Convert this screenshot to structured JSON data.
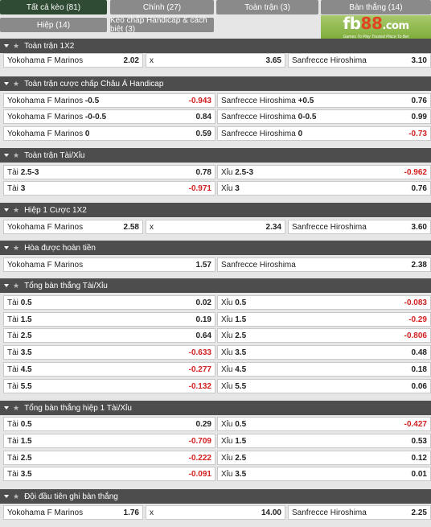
{
  "tabs": [
    {
      "label": "Tất cả kèo (81)",
      "active": true
    },
    {
      "label": "Chính (27)"
    },
    {
      "label": "Toàn trận (3)"
    },
    {
      "label": "Bàn thắng (14)"
    },
    {
      "label": "Hiệp (14)"
    },
    {
      "label": "Kèo chấp Handicap & cách biệt (3)"
    }
  ],
  "logo": {
    "fb": "fb",
    "n88": "88",
    "com": ".com",
    "tagline": "Games To Play  Trusted Place To Bet"
  },
  "sections": [
    {
      "title": "Toàn trận 1X2",
      "rows": [
        [
          {
            "label": "Yokohama F Marinos",
            "odd": "2.02"
          },
          {
            "label": "x",
            "odd": "3.65"
          },
          {
            "label": "Sanfrecce Hiroshima",
            "odd": "3.10"
          }
        ]
      ]
    },
    {
      "title": "Toàn trận cược chấp Châu Á Handicap",
      "rows": [
        [
          {
            "label": "Yokohama F Marinos",
            "line": "-0.5",
            "odd": "-0.943"
          },
          {
            "label": "Sanfrecce Hiroshima",
            "line": "+0.5",
            "odd": "0.76"
          }
        ],
        [
          {
            "label": "Yokohama F Marinos",
            "line": "-0-0.5",
            "odd": "0.84"
          },
          {
            "label": "Sanfrecce Hiroshima",
            "line": "0-0.5",
            "odd": "0.99"
          }
        ],
        [
          {
            "label": "Yokohama F Marinos",
            "line": "0",
            "odd": "0.59"
          },
          {
            "label": "Sanfrecce Hiroshima",
            "line": "0",
            "odd": "-0.73"
          }
        ]
      ]
    },
    {
      "title": "Toàn trận Tài/Xỉu",
      "rows": [
        [
          {
            "label": "Tài",
            "line": "2.5-3",
            "odd": "0.78"
          },
          {
            "label": "Xỉu",
            "line": "2.5-3",
            "odd": "-0.962"
          }
        ],
        [
          {
            "label": "Tài",
            "line": "3",
            "odd": "-0.971"
          },
          {
            "label": "Xỉu",
            "line": "3",
            "odd": "0.76"
          }
        ]
      ]
    },
    {
      "title": "Hiệp 1 Cược 1X2",
      "rows": [
        [
          {
            "label": "Yokohama F Marinos",
            "odd": "2.58"
          },
          {
            "label": "x",
            "odd": "2.34"
          },
          {
            "label": "Sanfrecce Hiroshima",
            "odd": "3.60"
          }
        ]
      ]
    },
    {
      "title": "Hòa được hoàn tiền",
      "rows": [
        [
          {
            "label": "Yokohama F Marinos",
            "odd": "1.57"
          },
          {
            "label": "Sanfrecce Hiroshima",
            "odd": "2.38"
          }
        ]
      ]
    },
    {
      "title": "Tổng bàn thắng Tài/Xỉu",
      "rows": [
        [
          {
            "label": "Tài",
            "line": "0.5",
            "odd": "0.02"
          },
          {
            "label": "Xỉu",
            "line": "0.5",
            "odd": "-0.083"
          }
        ],
        [
          {
            "label": "Tài",
            "line": "1.5",
            "odd": "0.19"
          },
          {
            "label": "Xỉu",
            "line": "1.5",
            "odd": "-0.29"
          }
        ],
        [
          {
            "label": "Tài",
            "line": "2.5",
            "odd": "0.64"
          },
          {
            "label": "Xỉu",
            "line": "2.5",
            "odd": "-0.806"
          }
        ],
        [
          {
            "label": "Tài",
            "line": "3.5",
            "odd": "-0.633"
          },
          {
            "label": "Xỉu",
            "line": "3.5",
            "odd": "0.48"
          }
        ],
        [
          {
            "label": "Tài",
            "line": "4.5",
            "odd": "-0.277"
          },
          {
            "label": "Xỉu",
            "line": "4.5",
            "odd": "0.18"
          }
        ],
        [
          {
            "label": "Tài",
            "line": "5.5",
            "odd": "-0.132"
          },
          {
            "label": "Xỉu",
            "line": "5.5",
            "odd": "0.06"
          }
        ]
      ]
    },
    {
      "title": "Tổng bàn thắng hiệp 1 Tài/Xỉu",
      "rows": [
        [
          {
            "label": "Tài",
            "line": "0.5",
            "odd": "0.29"
          },
          {
            "label": "Xỉu",
            "line": "0.5",
            "odd": "-0.427"
          }
        ],
        [
          {
            "label": "Tài",
            "line": "1.5",
            "odd": "-0.709"
          },
          {
            "label": "Xỉu",
            "line": "1.5",
            "odd": "0.53"
          }
        ],
        [
          {
            "label": "Tài",
            "line": "2.5",
            "odd": "-0.222"
          },
          {
            "label": "Xỉu",
            "line": "2.5",
            "odd": "0.12"
          }
        ],
        [
          {
            "label": "Tài",
            "line": "3.5",
            "odd": "-0.091"
          },
          {
            "label": "Xỉu",
            "line": "3.5",
            "odd": "0.01"
          }
        ]
      ]
    },
    {
      "title": "Đội đầu tiên ghi bàn thắng",
      "rows": [
        [
          {
            "label": "Yokohama F Marinos",
            "odd": "1.76"
          },
          {
            "label": "x",
            "odd": "14.00"
          },
          {
            "label": "Sanfrecce Hiroshima",
            "odd": "2.25"
          }
        ]
      ]
    }
  ],
  "icons": {
    "section_toggle": "chevron-down-icon",
    "favorite": "star-icon"
  }
}
